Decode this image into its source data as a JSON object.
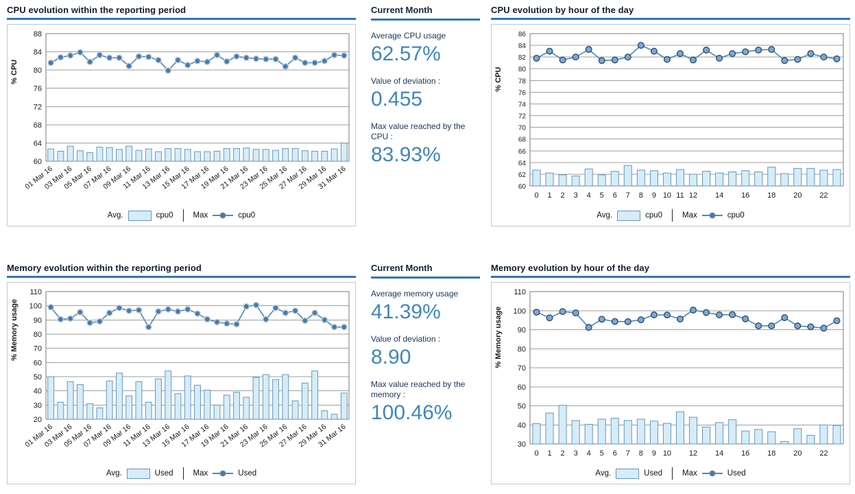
{
  "colors": {
    "accent_blue": "#2e78b8",
    "stat_value_blue": "#3e86c2",
    "bar_fill": "#d6ecf8",
    "bar_border": "#6298bc",
    "line_blue": "#4e86b8",
    "grid_gray": "#9f9f9f"
  },
  "chart_data": [
    {
      "id": "cpu-evolution-reporting-period",
      "type": "bar+line",
      "title": "CPU evolution within the reporting period",
      "ylabel": "% CPU",
      "ymin": 60,
      "ymax": 88,
      "ystep": 4,
      "tick_size": 11,
      "rotate_labels": true,
      "marker_style": "halo",
      "grid": true,
      "legend_position": "bottom",
      "x_labels": [
        "01 Mar 16",
        "",
        "03 Mar 16",
        "",
        "05 Mar 16",
        "",
        "07 Mar 16",
        "",
        "09 Mar 16",
        "",
        "11 Mar 16",
        "",
        "13 Mar 16",
        "",
        "15 Mar 16",
        "",
        "17 Mar 16",
        "",
        "19 Mar 16",
        "",
        "21 Mar 16",
        "",
        "23 Mar 16",
        "",
        "25 Mar 16",
        "",
        "27 Mar 16",
        "",
        "29 Mar 16",
        "",
        "31 Mar 16"
      ],
      "series": [
        {
          "name": "cpu0",
          "role": "avg",
          "type": "bar",
          "values": [
            62.7,
            62.2,
            63.3,
            62.3,
            61.9,
            63.1,
            63.0,
            62.6,
            63.3,
            62.4,
            62.7,
            62.1,
            62.8,
            62.8,
            62.6,
            62.1,
            62.1,
            62.2,
            62.8,
            62.8,
            62.9,
            62.6,
            62.6,
            62.4,
            62.8,
            62.8,
            62.3,
            62.2,
            62.2,
            62.7,
            64.0
          ]
        },
        {
          "name": "cpu0",
          "role": "max",
          "type": "line",
          "values": [
            81.6,
            82.8,
            83.2,
            83.9,
            81.8,
            83.3,
            82.7,
            82.7,
            80.9,
            83.0,
            82.9,
            82.2,
            79.9,
            82.2,
            81.1,
            82.0,
            81.8,
            83.3,
            81.9,
            83.0,
            82.7,
            82.5,
            82.4,
            82.4,
            80.8,
            82.7,
            81.6,
            81.6,
            82.0,
            83.3,
            83.2
          ]
        }
      ],
      "legend": {
        "avg_label": "Avg.",
        "avg_series": "cpu0",
        "max_label": "Max",
        "max_series": "cpu0"
      }
    },
    {
      "id": "cpu-evolution-by-hour",
      "type": "bar+line",
      "title": "CPU evolution by hour of the day",
      "ylabel": "% CPU",
      "ymin": 60,
      "ymax": 86,
      "ystep": 2,
      "tick_size": 10,
      "rotate_labels": false,
      "marker_style": "ring",
      "grid": true,
      "legend_position": "bottom",
      "x_labels": [
        "0",
        "1",
        "2",
        "3",
        "4",
        "5",
        "6",
        "7",
        "8",
        "9",
        "10",
        "11",
        "12",
        "",
        "14",
        "",
        "16",
        "",
        "18",
        "",
        "20",
        "",
        "22",
        ""
      ],
      "series": [
        {
          "name": "cpu0",
          "role": "avg",
          "type": "bar",
          "values": [
            62.7,
            62.2,
            61.9,
            61.7,
            62.9,
            61.9,
            62.5,
            63.5,
            62.7,
            62.6,
            62.2,
            62.8,
            62.0,
            62.5,
            62.2,
            62.4,
            62.6,
            62.4,
            63.2,
            62.1,
            63.0,
            63.0,
            62.7,
            62.8
          ]
        },
        {
          "name": "cpu0",
          "role": "max",
          "type": "line",
          "values": [
            81.8,
            83.0,
            81.5,
            82.0,
            83.3,
            81.4,
            81.5,
            82.0,
            84.0,
            83.0,
            81.6,
            82.6,
            81.5,
            83.2,
            81.8,
            82.6,
            82.9,
            83.2,
            83.3,
            81.4,
            81.6,
            82.6,
            82.0,
            81.7
          ]
        }
      ],
      "legend": {
        "avg_label": "Avg.",
        "avg_series": "cpu0",
        "max_label": "Max",
        "max_series": "cpu0"
      }
    },
    {
      "id": "memory-evolution-reporting-period",
      "type": "bar+line",
      "title": "Memory evolution within the reporting period",
      "ylabel": "% Memory usage",
      "ymin": 20,
      "ymax": 110,
      "ystep": 10,
      "tick_size": 11,
      "rotate_labels": true,
      "marker_style": "halo",
      "grid": true,
      "legend_position": "bottom",
      "x_labels": [
        "01 Mar 16",
        "",
        "03 Mar 16",
        "",
        "05 Mar 16",
        "",
        "07 Mar 16",
        "",
        "09 Mar 16",
        "",
        "11 Mar 16",
        "",
        "13 Mar 16",
        "",
        "15 Mar 16",
        "",
        "17 Mar 16",
        "",
        "19 Mar 16",
        "",
        "21 Mar 16",
        "",
        "23 Mar 16",
        "",
        "25 Mar 16",
        "",
        "27 Mar 16",
        "",
        "29 Mar 16",
        "",
        "31 Mar 16"
      ],
      "series": [
        {
          "name": "Used",
          "role": "avg",
          "type": "bar",
          "values": [
            50,
            32,
            46.5,
            44.5,
            31,
            28,
            47,
            52.5,
            36.5,
            46.5,
            32,
            48.5,
            54,
            38,
            50.5,
            44,
            40.5,
            30,
            37,
            39,
            35.5,
            49.5,
            51.5,
            48,
            51.5,
            33,
            45.5,
            54,
            26,
            23.5,
            38.5
          ]
        },
        {
          "name": "Used",
          "role": "max",
          "type": "line",
          "values": [
            99,
            90.5,
            91,
            95.5,
            88,
            89,
            95,
            98.5,
            96.5,
            97,
            85,
            96,
            97.5,
            96,
            97.5,
            94.5,
            90.5,
            88.5,
            87.5,
            87,
            99.5,
            100.5,
            90.5,
            98.5,
            95,
            96.5,
            89.5,
            95,
            90,
            85,
            85
          ]
        }
      ],
      "legend": {
        "avg_label": "Avg.",
        "avg_series": "Used",
        "max_label": "Max",
        "max_series": "Used"
      }
    },
    {
      "id": "memory-evolution-by-hour",
      "type": "bar+line",
      "title": "Memory evolution by hour of the day",
      "ylabel": "% Memory usage",
      "ymin": 30,
      "ymax": 110,
      "ystep": 10,
      "tick_size": 11,
      "rotate_labels": false,
      "marker_style": "ring",
      "grid": true,
      "legend_position": "bottom",
      "x_labels": [
        "0",
        "1",
        "2",
        "3",
        "4",
        "5",
        "6",
        "7",
        "8",
        "9",
        "10",
        "",
        "12",
        "",
        "14",
        "",
        "16",
        "",
        "18",
        "",
        "20",
        "",
        "22",
        ""
      ],
      "series": [
        {
          "name": "Used",
          "role": "avg",
          "type": "bar",
          "values": [
            40.7,
            46.2,
            50.3,
            42.3,
            40.3,
            43,
            43.5,
            42.3,
            43,
            42,
            40.8,
            46.9,
            44,
            38.9,
            41.2,
            42.7,
            36.8,
            37.6,
            36.4,
            31.3,
            38,
            34.5,
            40,
            39.7
          ]
        },
        {
          "name": "Used",
          "role": "max",
          "type": "line",
          "values": [
            99.2,
            96.2,
            99.5,
            98.8,
            91.2,
            95.5,
            94.3,
            94.2,
            95.2,
            97.8,
            97.7,
            95.6,
            100.3,
            99,
            97.8,
            97.9,
            95.7,
            92,
            92,
            96.3,
            92,
            91.5,
            90.8,
            94.7
          ]
        }
      ],
      "legend": {
        "avg_label": "Avg.",
        "avg_series": "Used",
        "max_label": "Max",
        "max_series": "Used"
      }
    }
  ],
  "stats": {
    "cpu": {
      "title": "Current Month",
      "items": [
        {
          "label": "Average CPU usage",
          "value": "62.57%"
        },
        {
          "label": "Value of deviation :",
          "value": "0.455"
        },
        {
          "label": "Max value reached by the CPU :",
          "value": "83.93%"
        }
      ]
    },
    "memory": {
      "title": "Current Month",
      "items": [
        {
          "label": "Average memory usage",
          "value": "41.39%"
        },
        {
          "label": "Value of deviation :",
          "value": "8.90"
        },
        {
          "label": "Max value reached by the memory :",
          "value": "100.46%"
        }
      ]
    }
  }
}
